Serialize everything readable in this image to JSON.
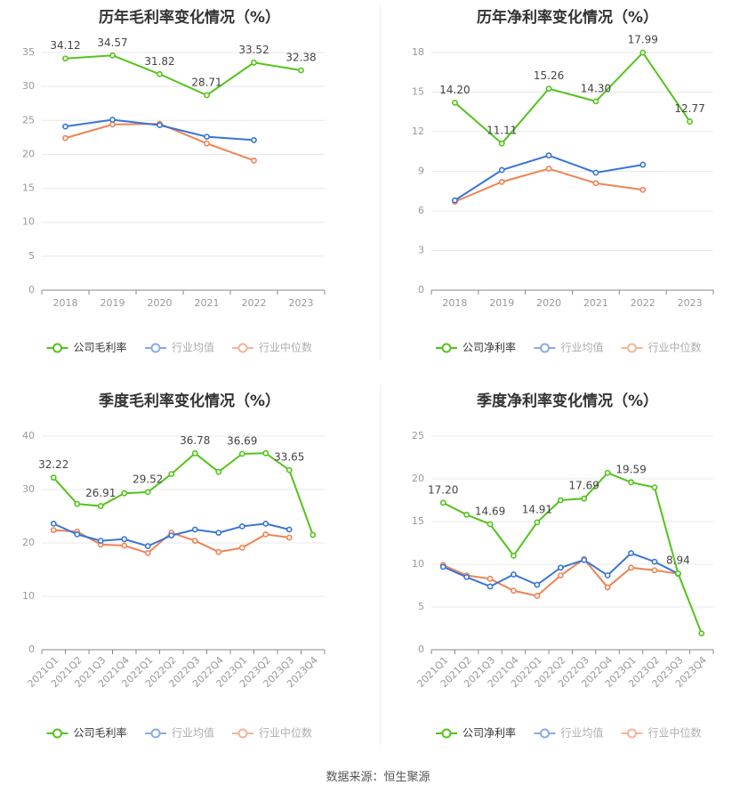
{
  "colors": {
    "company": "#52c41a",
    "avg": "#3875d7",
    "median": "#ef8353",
    "grid": "#e8e8e8",
    "axis": "#999999"
  },
  "source": "数据来源：恒生聚源",
  "chart_data": [
    {
      "type": "line",
      "title": "历年毛利率变化情况（%）",
      "categories": [
        "2018",
        "2019",
        "2020",
        "2021",
        "2022",
        "2023"
      ],
      "ylim": [
        0,
        35
      ],
      "yticks": [
        0,
        5,
        10,
        15,
        20,
        25,
        30,
        35
      ],
      "grid": true,
      "legend_position": "bottom",
      "series": [
        {
          "name": "公司毛利率",
          "key": "company",
          "values": [
            34.12,
            34.57,
            31.82,
            28.71,
            33.52,
            32.38
          ],
          "labels": [
            "34.12",
            "34.57",
            "31.82",
            "28.71",
            "33.52",
            "32.38"
          ]
        },
        {
          "name": "行业均值",
          "key": "avg",
          "values": [
            24.1,
            25.1,
            24.3,
            22.6,
            22.1,
            null
          ]
        },
        {
          "name": "行业中位数",
          "key": "median",
          "values": [
            22.4,
            24.4,
            24.5,
            21.6,
            19.1,
            null
          ]
        }
      ]
    },
    {
      "type": "line",
      "title": "历年净利率变化情况（%）",
      "categories": [
        "2018",
        "2019",
        "2020",
        "2021",
        "2022",
        "2023"
      ],
      "ylim": [
        0,
        18
      ],
      "yticks": [
        0,
        3,
        6,
        9,
        12,
        15,
        18
      ],
      "grid": true,
      "legend_position": "bottom",
      "series": [
        {
          "name": "公司净利率",
          "key": "company",
          "values": [
            14.2,
            11.11,
            15.26,
            14.3,
            17.99,
            12.77
          ],
          "labels": [
            "14.20",
            "11.11",
            "15.26",
            "14.30",
            "17.99",
            "12.77"
          ]
        },
        {
          "name": "行业均值",
          "key": "avg",
          "values": [
            6.8,
            9.1,
            10.2,
            8.9,
            9.5,
            null
          ]
        },
        {
          "name": "行业中位数",
          "key": "median",
          "values": [
            6.7,
            8.2,
            9.2,
            8.1,
            7.6,
            null
          ]
        }
      ]
    },
    {
      "type": "line",
      "title": "季度毛利率变化情况（%）",
      "categories": [
        "2021Q1",
        "2021Q2",
        "2021Q3",
        "2021Q4",
        "2022Q1",
        "2022Q2",
        "2022Q3",
        "2022Q4",
        "2023Q1",
        "2023Q2",
        "2023Q3",
        "2023Q4"
      ],
      "ylim": [
        0,
        40
      ],
      "yticks": [
        0,
        10,
        20,
        30,
        40
      ],
      "grid": true,
      "legend_position": "bottom",
      "series": [
        {
          "name": "公司毛利率",
          "key": "company",
          "values": [
            32.22,
            27.3,
            26.91,
            29.3,
            29.52,
            32.9,
            36.78,
            33.3,
            36.69,
            36.8,
            33.65,
            21.5
          ],
          "labels": [
            "32.22",
            "",
            "26.91",
            "",
            "29.52",
            "",
            "36.78",
            "",
            "36.69",
            "",
            "33.65",
            ""
          ]
        },
        {
          "name": "行业均值",
          "key": "avg",
          "values": [
            23.6,
            21.6,
            20.4,
            20.7,
            19.4,
            21.4,
            22.5,
            21.9,
            23.1,
            23.6,
            22.5,
            null
          ]
        },
        {
          "name": "行业中位数",
          "key": "median",
          "values": [
            22.4,
            22.1,
            19.7,
            19.5,
            18.1,
            21.9,
            20.4,
            18.3,
            19.1,
            21.6,
            21.0,
            null
          ]
        }
      ]
    },
    {
      "type": "line",
      "title": "季度净利率变化情况（%）",
      "categories": [
        "2021Q1",
        "2021Q2",
        "2021Q3",
        "2021Q4",
        "2022Q1",
        "2022Q2",
        "2022Q3",
        "2022Q4",
        "2023Q1",
        "2023Q2",
        "2023Q3",
        "2023Q4"
      ],
      "ylim": [
        0,
        25
      ],
      "yticks": [
        0,
        5,
        10,
        15,
        20,
        25
      ],
      "grid": true,
      "legend_position": "bottom",
      "series": [
        {
          "name": "公司净利率",
          "key": "company",
          "values": [
            17.2,
            15.8,
            14.69,
            11.0,
            14.91,
            17.5,
            17.69,
            20.7,
            19.59,
            19.0,
            8.94,
            1.9
          ],
          "labels": [
            "17.20",
            "",
            "14.69",
            "",
            "14.91",
            "",
            "17.69",
            "",
            "19.59",
            "",
            "8.94",
            ""
          ]
        },
        {
          "name": "行业均值",
          "key": "avg",
          "values": [
            9.7,
            8.5,
            7.4,
            8.8,
            7.6,
            9.6,
            10.5,
            8.7,
            11.3,
            10.3,
            8.9,
            null
          ]
        },
        {
          "name": "行业中位数",
          "key": "median",
          "values": [
            9.9,
            8.7,
            8.3,
            6.9,
            6.3,
            8.7,
            10.6,
            7.3,
            9.6,
            9.3,
            8.9,
            null
          ]
        }
      ]
    }
  ]
}
